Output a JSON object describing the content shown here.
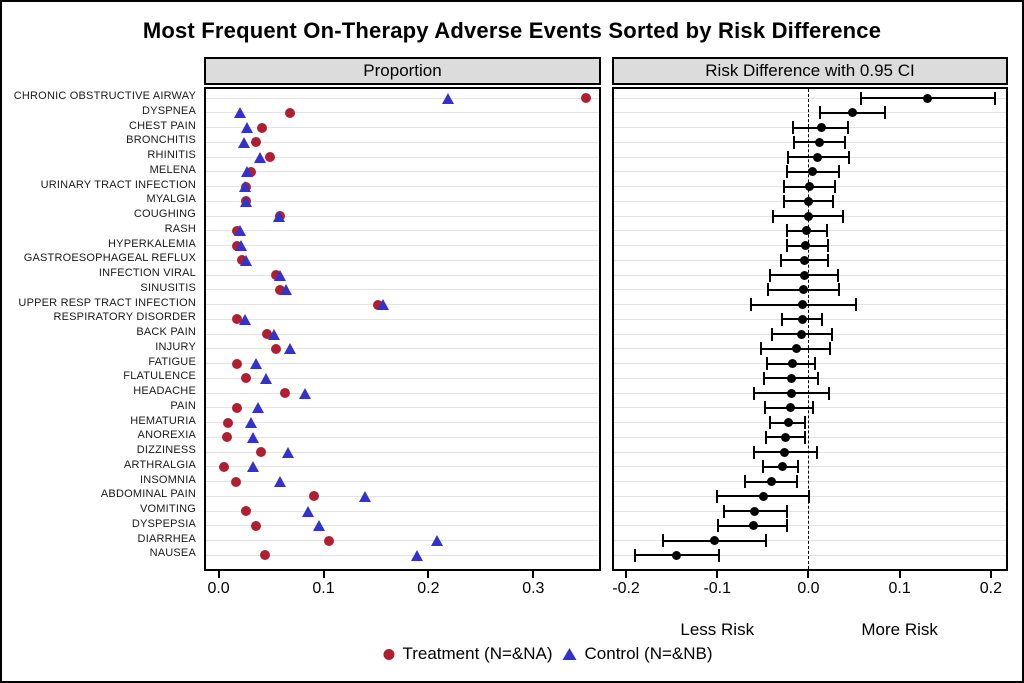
{
  "title": "Most Frequent On-Therapy Adverse Events Sorted by Risk Difference",
  "annotations": {
    "less_risk": "Less Risk",
    "more_risk": "More Risk"
  },
  "colors": {
    "treatment": "#B01E32",
    "control": "#3333CC",
    "ci": "#000000",
    "gridline": "#E3E3E3",
    "header_bg": "#DCDCDC"
  },
  "legend": {
    "treatment_label": "Treatment (N=&NA)",
    "control_label": "Control (N=&NB)"
  },
  "chart_data": {
    "type": "scatter",
    "title": "Most Frequent On-Therapy Adverse Events Sorted by Risk Difference",
    "grid": "horizontal",
    "legend_position": "bottom",
    "panels": {
      "proportion": {
        "header": "Proportion",
        "xlim": [
          -0.012,
          0.3626
        ],
        "xticks": [
          0.0,
          0.1,
          0.2,
          0.3
        ],
        "xtick_labels": [
          "0.0",
          "0.1",
          "0.2",
          "0.3"
        ]
      },
      "risk": {
        "header": "Risk Difference with 0.95 CI",
        "xlim": [
          -0.2132,
          0.2166
        ],
        "xticks": [
          -0.2,
          -0.1,
          0.0,
          0.1,
          0.2
        ],
        "xtick_labels": [
          "-0.2",
          "-0.1",
          "0.0",
          "0.1",
          "0.2"
        ],
        "reference_line": 0.0,
        "less_risk_label_x": -0.1,
        "more_risk_label_x": 0.1
      }
    },
    "categories": [
      "CHRONIC OBSTRUCTIVE AIRWAY",
      "DYSPNEA",
      "CHEST PAIN",
      "BRONCHITIS",
      "RHINITIS",
      "MELENA",
      "URINARY TRACT INFECTION",
      "MYALGIA",
      "COUGHING",
      "RASH",
      "HYPERKALEMIA",
      "GASTROESOPHAGEAL REFLUX",
      "INFECTION VIRAL",
      "SINUSITIS",
      "UPPER RESP TRACT INFECTION",
      "RESPIRATORY DISORDER",
      "BACK PAIN",
      "INJURY",
      "FATIGUE",
      "FLATULENCE",
      "HEADACHE",
      "PAIN",
      "HEMATURIA",
      "ANOREXIA",
      "DIZZINESS",
      "ARTHRALGIA",
      "INSOMNIA",
      "ABDOMINAL PAIN",
      "VOMITING",
      "DYSPEPSIA",
      "DIARRHEA",
      "NAUSEA"
    ],
    "series": [
      {
        "name": "Treatment (N=&NA)",
        "marker": "circle",
        "color": "#B01E32",
        "values": [
          0.35,
          0.068,
          0.041,
          0.036,
          0.049,
          0.031,
          0.026,
          0.026,
          0.059,
          0.018,
          0.018,
          0.022,
          0.055,
          0.059,
          0.152,
          0.018,
          0.046,
          0.055,
          0.018,
          0.026,
          0.063,
          0.018,
          0.009,
          0.008,
          0.04,
          0.005,
          0.017,
          0.091,
          0.026,
          0.036,
          0.105,
          0.044
        ]
      },
      {
        "name": "Control (N=&NB)",
        "marker": "triangle",
        "color": "#3333CC",
        "values": [
          0.219,
          0.02,
          0.027,
          0.024,
          0.039,
          0.027,
          0.025,
          0.026,
          0.058,
          0.02,
          0.021,
          0.026,
          0.059,
          0.064,
          0.157,
          0.025,
          0.053,
          0.068,
          0.036,
          0.045,
          0.082,
          0.038,
          0.031,
          0.033,
          0.066,
          0.033,
          0.059,
          0.14,
          0.085,
          0.096,
          0.208,
          0.189
        ]
      }
    ],
    "risk_difference": {
      "values": [
        0.131,
        0.048,
        0.014,
        0.012,
        0.01,
        0.004,
        0.001,
        0.0,
        0.0,
        -0.002,
        -0.003,
        -0.004,
        -0.004,
        -0.005,
        -0.006,
        -0.007,
        -0.008,
        -0.013,
        -0.018,
        -0.019,
        -0.019,
        -0.02,
        -0.022,
        -0.025,
        -0.026,
        -0.028,
        -0.041,
        -0.049,
        -0.059,
        -0.06,
        -0.103,
        -0.145
      ],
      "lower": [
        0.058,
        0.013,
        -0.017,
        -0.016,
        -0.022,
        -0.024,
        -0.027,
        -0.027,
        -0.039,
        -0.024,
        -0.023,
        -0.03,
        -0.042,
        -0.044,
        -0.063,
        -0.029,
        -0.04,
        -0.052,
        -0.045,
        -0.049,
        -0.06,
        -0.048,
        -0.042,
        -0.047,
        -0.06,
        -0.05,
        -0.07,
        -0.1,
        -0.093,
        -0.099,
        -0.159,
        -0.19
      ],
      "upper": [
        0.205,
        0.084,
        0.043,
        0.04,
        0.044,
        0.033,
        0.029,
        0.027,
        0.038,
        0.02,
        0.021,
        0.021,
        0.032,
        0.034,
        0.052,
        0.015,
        0.026,
        0.024,
        0.007,
        0.011,
        0.023,
        0.005,
        -0.004,
        -0.004,
        0.009,
        -0.011,
        -0.013,
        0.001,
        -0.024,
        -0.023,
        -0.047,
        -0.098
      ]
    }
  }
}
